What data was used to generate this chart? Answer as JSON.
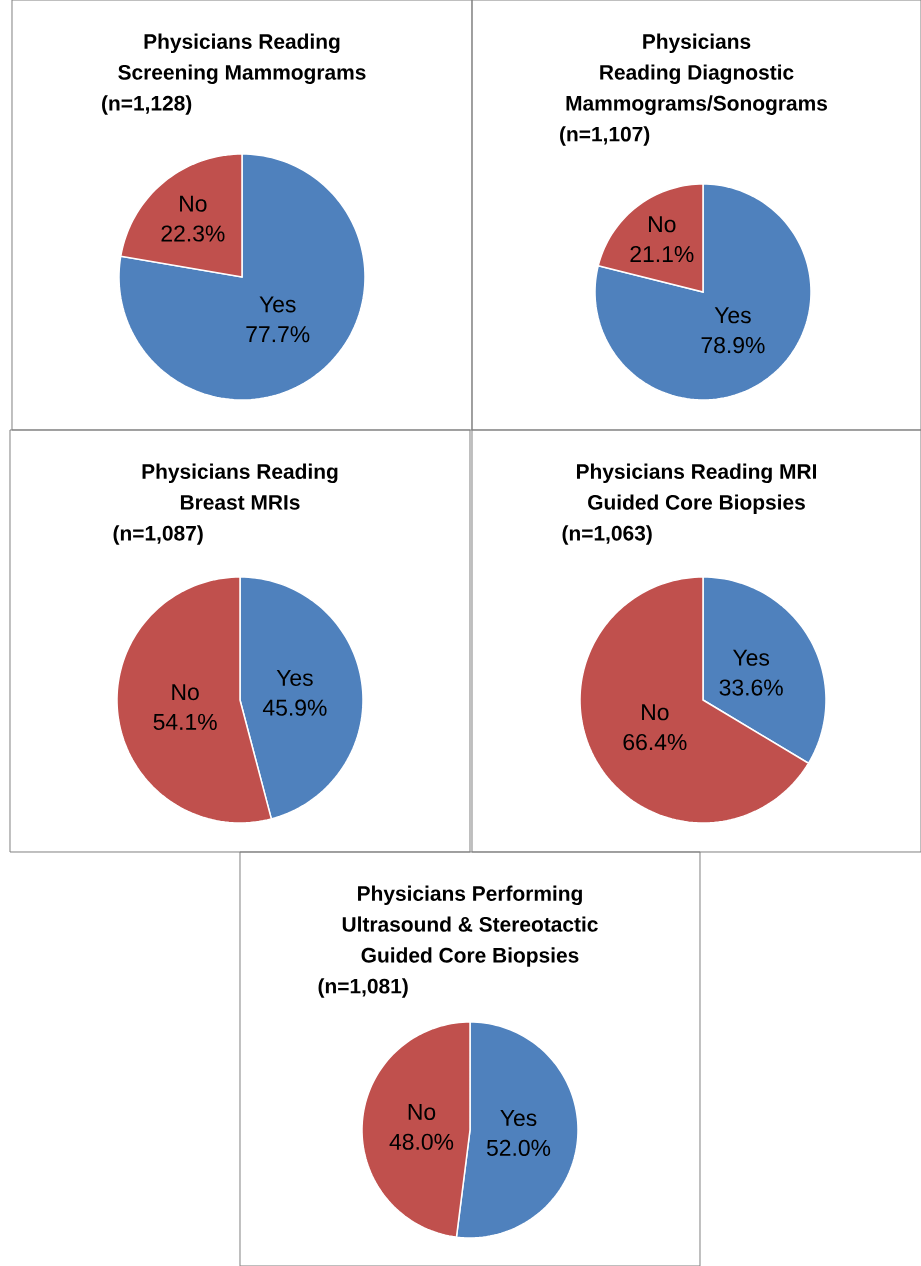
{
  "chart_data": [
    {
      "type": "pie",
      "title": "Physicians Reading Screening Mammograms",
      "subtitle": "(n=1,128)",
      "categories": [
        "Yes",
        "No"
      ],
      "values": [
        77.7,
        22.3
      ],
      "value_labels": [
        "77.7%",
        "22.3%"
      ],
      "colors": [
        "#4f81bd",
        "#c0504d"
      ]
    },
    {
      "type": "pie",
      "title": "Physicians Reading Diagnostic Mammograms/Sonograms",
      "subtitle": "(n=1,107)",
      "categories": [
        "Yes",
        "No"
      ],
      "values": [
        78.9,
        21.1
      ],
      "value_labels": [
        "78.9%",
        "21.1%"
      ],
      "colors": [
        "#4f81bd",
        "#c0504d"
      ]
    },
    {
      "type": "pie",
      "title": "Physicians Reading Breast MRIs",
      "subtitle": "(n=1,087)",
      "categories": [
        "Yes",
        "No"
      ],
      "values": [
        45.9,
        54.1
      ],
      "value_labels": [
        "45.9%",
        "54.1%"
      ],
      "colors": [
        "#4f81bd",
        "#c0504d"
      ]
    },
    {
      "type": "pie",
      "title": "Physicians Reading MRI Guided Core Biopsies",
      "subtitle": "(n=1,063)",
      "categories": [
        "Yes",
        "No"
      ],
      "values": [
        33.6,
        66.4
      ],
      "value_labels": [
        "33.6%",
        "66.4%"
      ],
      "colors": [
        "#4f81bd",
        "#c0504d"
      ]
    },
    {
      "type": "pie",
      "title": "Physicians Performing Ultrasound & Stereotactic Guided Core Biopsies",
      "subtitle": "(n=1,081)",
      "categories": [
        "Yes",
        "No"
      ],
      "values": [
        52.0,
        48.0
      ],
      "value_labels": [
        "52.0%",
        "48.0%"
      ],
      "colors": [
        "#4f81bd",
        "#c0504d"
      ]
    }
  ]
}
